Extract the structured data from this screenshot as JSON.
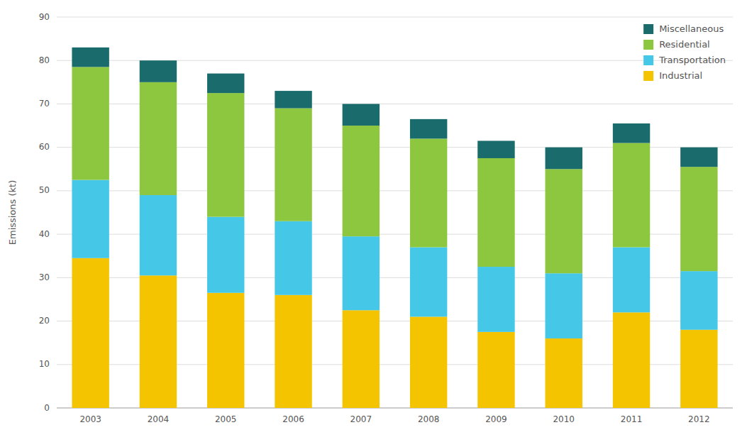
{
  "chart_data": {
    "type": "bar",
    "stacked": true,
    "categories": [
      "2003",
      "2004",
      "2005",
      "2006",
      "2007",
      "2008",
      "2009",
      "2010",
      "2011",
      "2012"
    ],
    "series": [
      {
        "name": "Industrial",
        "color": "#f5c400",
        "values": [
          34.5,
          30.5,
          26.5,
          26.0,
          22.5,
          21.0,
          17.5,
          16.0,
          22.0,
          18.0
        ]
      },
      {
        "name": "Transportation",
        "color": "#45c8e8",
        "values": [
          18.0,
          18.5,
          17.5,
          17.0,
          17.0,
          16.0,
          15.0,
          15.0,
          15.0,
          13.5
        ]
      },
      {
        "name": "Residential",
        "color": "#8dc63f",
        "values": [
          26.0,
          26.0,
          28.5,
          26.0,
          25.5,
          25.0,
          25.0,
          24.0,
          24.0,
          24.0
        ]
      },
      {
        "name": "Miscellaneous",
        "color": "#1a6b6b",
        "values": [
          4.5,
          5.0,
          4.5,
          4.0,
          5.0,
          4.5,
          4.0,
          5.0,
          4.5,
          4.5
        ]
      }
    ],
    "ylabel": "Emissions (kt)",
    "ylim": [
      0,
      90
    ],
    "yticks": [
      0,
      10,
      20,
      30,
      40,
      50,
      60,
      70,
      80,
      90
    ],
    "grid": true,
    "legend": "upper right"
  }
}
